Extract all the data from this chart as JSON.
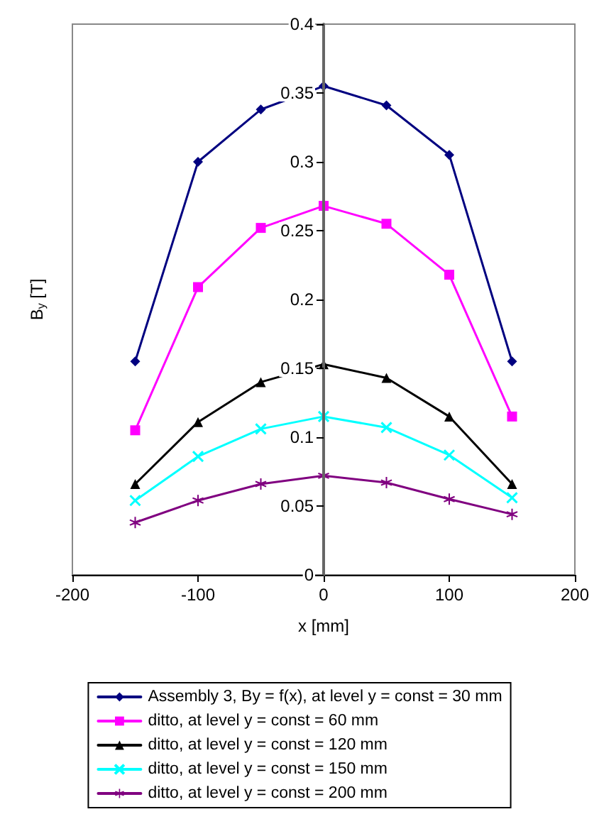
{
  "chart_data": {
    "type": "line",
    "ylabel": "B$_{y}$ [T]",
    "xlabel": "x [mm]",
    "x": [
      -150,
      -100,
      -50,
      0,
      50,
      100,
      150
    ],
    "xlim": [
      -200,
      200
    ],
    "xticks": [
      -200,
      -100,
      0,
      100,
      200
    ],
    "ylim": [
      0,
      0.4
    ],
    "yticks": [
      0,
      0.05,
      0.1,
      0.15,
      0.2,
      0.25,
      0.3,
      0.35,
      0.4
    ],
    "grid": false,
    "legend": "bottom",
    "line_style": "solid",
    "series": [
      {
        "name": "Assembly 3, By = f(x), at level y = const = 30 mm",
        "color": "#000080",
        "marker": "diamond",
        "values": [
          0.155,
          0.3,
          0.338,
          0.355,
          0.341,
          0.305,
          0.155
        ]
      },
      {
        "name": "ditto, at level y = const = 60 mm",
        "color": "#ff00ff",
        "marker": "square",
        "values": [
          0.105,
          0.209,
          0.252,
          0.268,
          0.255,
          0.218,
          0.115
        ]
      },
      {
        "name": "ditto, at level y = const = 120 mm",
        "color": "#000000",
        "marker": "triangle",
        "values": [
          0.066,
          0.111,
          0.14,
          0.153,
          0.143,
          0.115,
          0.066
        ]
      },
      {
        "name": "ditto, at level y = const = 150 mm",
        "color": "#00ffff",
        "marker": "cross",
        "values": [
          0.054,
          0.086,
          0.106,
          0.115,
          0.107,
          0.087,
          0.056
        ]
      },
      {
        "name": "ditto, at level y = const = 200 mm",
        "color": "#800080",
        "marker": "star",
        "values": [
          0.038,
          0.054,
          0.066,
          0.072,
          0.067,
          0.055,
          0.044
        ]
      }
    ]
  }
}
